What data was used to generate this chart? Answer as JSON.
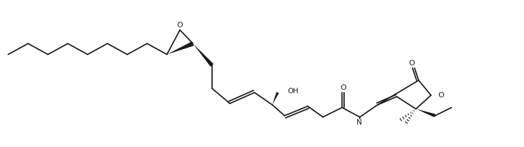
{
  "figsize": [
    7.66,
    2.16
  ],
  "dpi": 100,
  "bg_color": "#ffffff",
  "line_color": "#1a1a1a",
  "lw": 1.3
}
